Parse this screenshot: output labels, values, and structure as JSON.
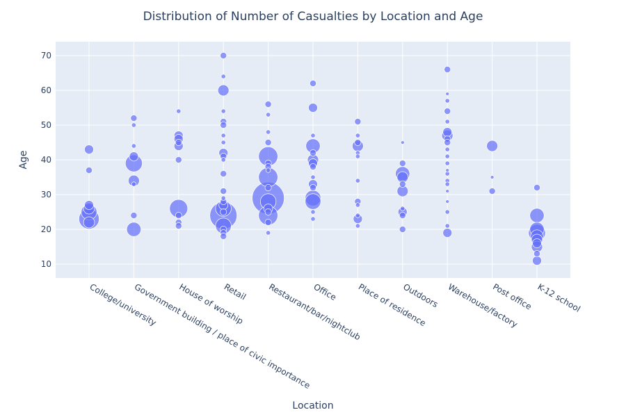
{
  "chart_data": {
    "type": "scatter",
    "title": "Distribution of Number of Casualties by Location and Age",
    "xlabel": "Location",
    "ylabel": "Age",
    "ylim": [
      6,
      74
    ],
    "yticks": [
      10,
      20,
      30,
      40,
      50,
      60,
      70
    ],
    "grid": true,
    "legend": "none",
    "colors": {
      "marker": "#636efa",
      "plot_bg": "#e5ecf6",
      "grid": "#ffffff",
      "text": "#2a3f5f"
    },
    "categories": [
      "College/university",
      "Government building /  place of civic importance",
      "House of worship",
      "Retail",
      "Restaurant/bar/nightclub",
      "Office",
      "Place of residence",
      "Outdoors",
      "Warehouse/factory",
      "Post office",
      "K-12 school"
    ],
    "size_unit": "casualties",
    "points": [
      {
        "x": "College/university",
        "y": 43,
        "size": 2
      },
      {
        "x": "College/university",
        "y": 37,
        "size": 1
      },
      {
        "x": "College/university",
        "y": 27,
        "size": 2
      },
      {
        "x": "College/university",
        "y": 26,
        "size": 3
      },
      {
        "x": "College/university",
        "y": 25,
        "size": 6
      },
      {
        "x": "College/university",
        "y": 23,
        "size": 10
      },
      {
        "x": "College/university",
        "y": 22,
        "size": 3
      },
      {
        "x": "Government building /  place of civic importance",
        "y": 52,
        "size": 1
      },
      {
        "x": "Government building /  place of civic importance",
        "y": 50,
        "size": 0.5
      },
      {
        "x": "Government building /  place of civic importance",
        "y": 44,
        "size": 0.5
      },
      {
        "x": "Government building /  place of civic importance",
        "y": 41,
        "size": 2
      },
      {
        "x": "Government building /  place of civic importance",
        "y": 39,
        "size": 7
      },
      {
        "x": "Government building /  place of civic importance",
        "y": 34,
        "size": 3
      },
      {
        "x": "Government building /  place of civic importance",
        "y": 33,
        "size": 0.5
      },
      {
        "x": "Government building /  place of civic importance",
        "y": 24,
        "size": 1
      },
      {
        "x": "Government building /  place of civic importance",
        "y": 20,
        "size": 5
      },
      {
        "x": "House of worship",
        "y": 54,
        "size": 0.5
      },
      {
        "x": "House of worship",
        "y": 47,
        "size": 2
      },
      {
        "x": "House of worship",
        "y": 46,
        "size": 2
      },
      {
        "x": "House of worship",
        "y": 45,
        "size": 1
      },
      {
        "x": "House of worship",
        "y": 44,
        "size": 2
      },
      {
        "x": "House of worship",
        "y": 40,
        "size": 1
      },
      {
        "x": "House of worship",
        "y": 26,
        "size": 8
      },
      {
        "x": "House of worship",
        "y": 24,
        "size": 1
      },
      {
        "x": "House of worship",
        "y": 22,
        "size": 1
      },
      {
        "x": "House of worship",
        "y": 21,
        "size": 1
      },
      {
        "x": "Retail",
        "y": 70,
        "size": 1
      },
      {
        "x": "Retail",
        "y": 64,
        "size": 0.5
      },
      {
        "x": "Retail",
        "y": 60,
        "size": 3
      },
      {
        "x": "Retail",
        "y": 54,
        "size": 0.5
      },
      {
        "x": "Retail",
        "y": 51,
        "size": 1
      },
      {
        "x": "Retail",
        "y": 50,
        "size": 1
      },
      {
        "x": "Retail",
        "y": 47,
        "size": 0.5
      },
      {
        "x": "Retail",
        "y": 45,
        "size": 0.5
      },
      {
        "x": "Retail",
        "y": 42,
        "size": 2
      },
      {
        "x": "Retail",
        "y": 41,
        "size": 1
      },
      {
        "x": "Retail",
        "y": 40,
        "size": 0.5
      },
      {
        "x": "Retail",
        "y": 36,
        "size": 1
      },
      {
        "x": "Retail",
        "y": 31,
        "size": 1
      },
      {
        "x": "Retail",
        "y": 29,
        "size": 0.5
      },
      {
        "x": "Retail",
        "y": 28,
        "size": 1
      },
      {
        "x": "Retail",
        "y": 27,
        "size": 2
      },
      {
        "x": "Retail",
        "y": 26,
        "size": 6
      },
      {
        "x": "Retail",
        "y": 25,
        "size": 1
      },
      {
        "x": "Retail",
        "y": 24,
        "size": 18
      },
      {
        "x": "Retail",
        "y": 21,
        "size": 6
      },
      {
        "x": "Retail",
        "y": 20,
        "size": 1
      },
      {
        "x": "Retail",
        "y": 19,
        "size": 1
      },
      {
        "x": "Retail",
        "y": 18,
        "size": 1
      },
      {
        "x": "Restaurant/bar/nightclub",
        "y": 56,
        "size": 1
      },
      {
        "x": "Restaurant/bar/nightclub",
        "y": 53,
        "size": 0.5
      },
      {
        "x": "Restaurant/bar/nightclub",
        "y": 48,
        "size": 0.5
      },
      {
        "x": "Restaurant/bar/nightclub",
        "y": 45,
        "size": 1
      },
      {
        "x": "Restaurant/bar/nightclub",
        "y": 41,
        "size": 9
      },
      {
        "x": "Restaurant/bar/nightclub",
        "y": 39,
        "size": 1
      },
      {
        "x": "Restaurant/bar/nightclub",
        "y": 38,
        "size": 1
      },
      {
        "x": "Restaurant/bar/nightclub",
        "y": 37,
        "size": 0.5
      },
      {
        "x": "Restaurant/bar/nightclub",
        "y": 35,
        "size": 9
      },
      {
        "x": "Restaurant/bar/nightclub",
        "y": 32,
        "size": 1
      },
      {
        "x": "Restaurant/bar/nightclub",
        "y": 29,
        "size": 25
      },
      {
        "x": "Restaurant/bar/nightclub",
        "y": 28,
        "size": 6
      },
      {
        "x": "Restaurant/bar/nightclub",
        "y": 26,
        "size": 2
      },
      {
        "x": "Restaurant/bar/nightclub",
        "y": 25,
        "size": 1
      },
      {
        "x": "Restaurant/bar/nightclub",
        "y": 24,
        "size": 9
      },
      {
        "x": "Restaurant/bar/nightclub",
        "y": 22,
        "size": 1
      },
      {
        "x": "Restaurant/bar/nightclub",
        "y": 19,
        "size": 0.5
      },
      {
        "x": "Office",
        "y": 62,
        "size": 1
      },
      {
        "x": "Office",
        "y": 55,
        "size": 2
      },
      {
        "x": "Office",
        "y": 47,
        "size": 0.5
      },
      {
        "x": "Office",
        "y": 44,
        "size": 5
      },
      {
        "x": "Office",
        "y": 42,
        "size": 1
      },
      {
        "x": "Office",
        "y": 40,
        "size": 3
      },
      {
        "x": "Office",
        "y": 39,
        "size": 2
      },
      {
        "x": "Office",
        "y": 38,
        "size": 1
      },
      {
        "x": "Office",
        "y": 35,
        "size": 0.5
      },
      {
        "x": "Office",
        "y": 33,
        "size": 2
      },
      {
        "x": "Office",
        "y": 32,
        "size": 1
      },
      {
        "x": "Office",
        "y": 29,
        "size": 6
      },
      {
        "x": "Office",
        "y": 28,
        "size": 6
      },
      {
        "x": "Office",
        "y": 25,
        "size": 0.5
      },
      {
        "x": "Office",
        "y": 23,
        "size": 0.5
      },
      {
        "x": "Place of residence",
        "y": 51,
        "size": 1
      },
      {
        "x": "Place of residence",
        "y": 47,
        "size": 0.5
      },
      {
        "x": "Place of residence",
        "y": 45,
        "size": 1
      },
      {
        "x": "Place of residence",
        "y": 44,
        "size": 3
      },
      {
        "x": "Place of residence",
        "y": 42,
        "size": 0.5
      },
      {
        "x": "Place of residence",
        "y": 41,
        "size": 0.5
      },
      {
        "x": "Place of residence",
        "y": 34,
        "size": 0.5
      },
      {
        "x": "Place of residence",
        "y": 28,
        "size": 1
      },
      {
        "x": "Place of residence",
        "y": 27,
        "size": 0.5
      },
      {
        "x": "Place of residence",
        "y": 24,
        "size": 0.5
      },
      {
        "x": "Place of residence",
        "y": 23,
        "size": 2
      },
      {
        "x": "Place of residence",
        "y": 21,
        "size": 0.5
      },
      {
        "x": "Outdoors",
        "y": 45,
        "size": 0.3
      },
      {
        "x": "Outdoors",
        "y": 39,
        "size": 1
      },
      {
        "x": "Outdoors",
        "y": 36,
        "size": 5
      },
      {
        "x": "Outdoors",
        "y": 35,
        "size": 3
      },
      {
        "x": "Outdoors",
        "y": 33,
        "size": 1
      },
      {
        "x": "Outdoors",
        "y": 31,
        "size": 3
      },
      {
        "x": "Outdoors",
        "y": 26,
        "size": 0.5
      },
      {
        "x": "Outdoors",
        "y": 25,
        "size": 2
      },
      {
        "x": "Outdoors",
        "y": 24,
        "size": 1
      },
      {
        "x": "Outdoors",
        "y": 20,
        "size": 1
      },
      {
        "x": "Warehouse/factory",
        "y": 66,
        "size": 1
      },
      {
        "x": "Warehouse/factory",
        "y": 59,
        "size": 0.3
      },
      {
        "x": "Warehouse/factory",
        "y": 57,
        "size": 0.5
      },
      {
        "x": "Warehouse/factory",
        "y": 54,
        "size": 1
      },
      {
        "x": "Warehouse/factory",
        "y": 51,
        "size": 0.5
      },
      {
        "x": "Warehouse/factory",
        "y": 48,
        "size": 2
      },
      {
        "x": "Warehouse/factory",
        "y": 47,
        "size": 3
      },
      {
        "x": "Warehouse/factory",
        "y": 46,
        "size": 1
      },
      {
        "x": "Warehouse/factory",
        "y": 45,
        "size": 1
      },
      {
        "x": "Warehouse/factory",
        "y": 43,
        "size": 0.5
      },
      {
        "x": "Warehouse/factory",
        "y": 41,
        "size": 0.5
      },
      {
        "x": "Warehouse/factory",
        "y": 39,
        "size": 0.5
      },
      {
        "x": "Warehouse/factory",
        "y": 37,
        "size": 0.3
      },
      {
        "x": "Warehouse/factory",
        "y": 36,
        "size": 0.5
      },
      {
        "x": "Warehouse/factory",
        "y": 34,
        "size": 0.5
      },
      {
        "x": "Warehouse/factory",
        "y": 33,
        "size": 0.5
      },
      {
        "x": "Warehouse/factory",
        "y": 31,
        "size": 0.3
      },
      {
        "x": "Warehouse/factory",
        "y": 28,
        "size": 0.3
      },
      {
        "x": "Warehouse/factory",
        "y": 25,
        "size": 0.5
      },
      {
        "x": "Warehouse/factory",
        "y": 21,
        "size": 0.5
      },
      {
        "x": "Warehouse/factory",
        "y": 19,
        "size": 2
      },
      {
        "x": "Post office",
        "y": 44,
        "size": 3
      },
      {
        "x": "Post office",
        "y": 35,
        "size": 0.3
      },
      {
        "x": "Post office",
        "y": 31,
        "size": 1
      },
      {
        "x": "K-12 school",
        "y": 32,
        "size": 1
      },
      {
        "x": "K-12 school",
        "y": 24,
        "size": 5
      },
      {
        "x": "K-12 school",
        "y": 20,
        "size": 5
      },
      {
        "x": "K-12 school",
        "y": 19,
        "size": 7
      },
      {
        "x": "K-12 school",
        "y": 18,
        "size": 4
      },
      {
        "x": "K-12 school",
        "y": 17,
        "size": 3
      },
      {
        "x": "K-12 school",
        "y": 16,
        "size": 2
      },
      {
        "x": "K-12 school",
        "y": 15,
        "size": 3
      },
      {
        "x": "K-12 school",
        "y": 13,
        "size": 1
      },
      {
        "x": "K-12 school",
        "y": 11,
        "size": 2
      }
    ]
  }
}
